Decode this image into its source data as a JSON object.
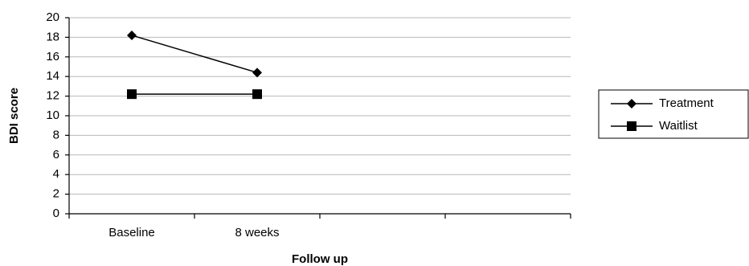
{
  "chart_data": {
    "type": "line",
    "categories": [
      "Baseline",
      "8 weeks",
      null,
      null
    ],
    "series": [
      {
        "name": "Treatment",
        "color": "#000000",
        "marker": "diamond",
        "values": [
          18.2,
          14.4,
          null,
          null
        ]
      },
      {
        "name": "Waitlist",
        "color": "#000000",
        "marker": "square",
        "values": [
          12.2,
          12.2,
          null,
          null
        ]
      }
    ],
    "ylabel": "BDI score",
    "xlabel": "Follow up",
    "ylim": [
      0,
      20
    ],
    "yticks": [
      0,
      2,
      4,
      6,
      8,
      10,
      12,
      14,
      16,
      18,
      20
    ],
    "grid": true,
    "legend": "right"
  }
}
